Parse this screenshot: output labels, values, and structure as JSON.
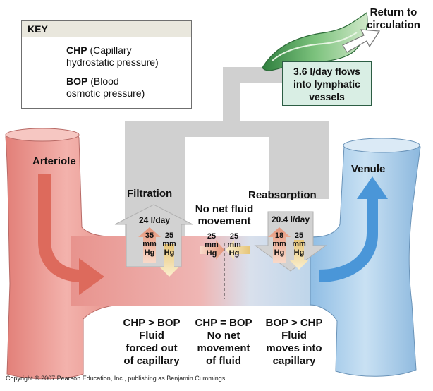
{
  "key": {
    "title": "KEY",
    "chp_abbr": "CHP",
    "chp_line1": "(Capillary",
    "chp_line2": "hydrostatic pressure)",
    "bop_abbr": "BOP",
    "bop_line1": "(Blood",
    "bop_line2": "osmotic pressure)"
  },
  "labels": {
    "return_line1": "Return to",
    "return_line2": "circulation",
    "lymph_line1": "3.6 l/day flows",
    "lymph_line2": "into lymphatic",
    "lymph_line3": "vessels",
    "arteriole": "Arteriole",
    "venule": "Venule",
    "filtration": "Filtration",
    "no_net_line1": "No net fluid",
    "no_net_line2": "movement",
    "reabsorption": "Reabsorption",
    "filtration_rate": "24 l/day",
    "reabsorption_rate": "20.4 l/day"
  },
  "pressures": {
    "filt_chp": "35",
    "filt_bop": "25",
    "mid_chp": "25",
    "mid_bop": "25",
    "reab_chp": "18",
    "reab_bop": "25",
    "unit1": "mm",
    "unit2": "Hg"
  },
  "bottom": {
    "left": [
      "CHP > BOP",
      "Fluid",
      "forced out",
      "of capillary"
    ],
    "middle": [
      "CHP = BOP",
      "No net",
      "movement",
      "of fluid"
    ],
    "right": [
      "BOP > CHP",
      "Fluid",
      "moves into",
      "capillary"
    ]
  },
  "copyright": "Copyright © 2007 Pearson Education, Inc., publishing as Benjamin Cummings",
  "colors": {
    "arteriole": "#e8938d",
    "venule": "#9cc6e6",
    "chp_arrow": "#e9a38a",
    "bop_arrow": "#e8cf86",
    "flow_gray": "#d0d0d0",
    "lymph_green": "#5aa865"
  }
}
